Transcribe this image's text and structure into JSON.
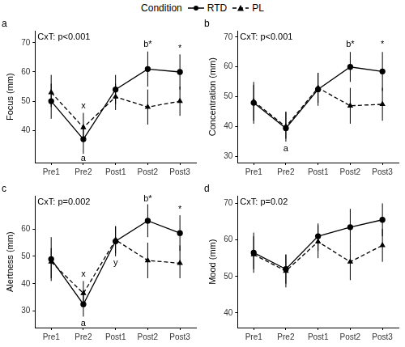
{
  "legend_title": "Condition",
  "chart_data": [
    {
      "type": "line",
      "title": "a",
      "y_label": "Focus (mm)",
      "categories": [
        "Pre1",
        "Pre2",
        "Post1",
        "Post2",
        "Post3"
      ],
      "ylim": [
        29,
        74
      ],
      "yticks": [
        40,
        50,
        60,
        70
      ],
      "grid": false,
      "series": [
        {
          "name": "RTD",
          "color": "#000000",
          "marker": "circle",
          "line_style": "solid",
          "values": [
            50,
            37,
            54,
            61,
            60
          ],
          "error": [
            [
              44,
              56
            ],
            [
              32,
              42
            ],
            [
              49,
              59
            ],
            [
              55,
              67
            ],
            [
              54,
              66
            ]
          ]
        },
        {
          "name": "PL",
          "color": "#000000",
          "marker": "triangle",
          "line_style": "dashed",
          "values": [
            53,
            41,
            51.5,
            48,
            50
          ],
          "error": [
            [
              48,
              59
            ],
            [
              37,
              46
            ],
            [
              47,
              56
            ],
            [
              42,
              54
            ],
            [
              45,
              55
            ]
          ]
        }
      ],
      "annotations": [
        {
          "text": "CxT: p<0.001"
        },
        {
          "text": "x",
          "x": "Pre2",
          "y": 48.5
        },
        {
          "text": "a",
          "x": "Pre2",
          "y": 30.5
        },
        {
          "text": "b*",
          "x": "Post2",
          "y": 69.5
        },
        {
          "text": "*",
          "x": "Post3",
          "y": 68
        }
      ]
    },
    {
      "type": "line",
      "title": "b",
      "y_label": "Concentration (mm)",
      "categories": [
        "Pre1",
        "Pre2",
        "Post1",
        "Post2",
        "Post3"
      ],
      "ylim": [
        28,
        72
      ],
      "yticks": [
        30,
        40,
        50,
        60,
        70
      ],
      "grid": false,
      "series": [
        {
          "name": "RTD",
          "color": "#000000",
          "marker": "circle",
          "line_style": "solid",
          "values": [
            48,
            39.5,
            52.5,
            60,
            58.5
          ],
          "error": [
            [
              41,
              55
            ],
            [
              35,
              45
            ],
            [
              47,
              58
            ],
            [
              55,
              65
            ],
            [
              52,
              65
            ]
          ]
        },
        {
          "name": "PL",
          "color": "#000000",
          "marker": "triangle",
          "line_style": "dashed",
          "values": [
            48.5,
            40,
            53,
            47,
            47.5
          ],
          "error": [
            [
              42,
              54
            ],
            [
              36,
              45
            ],
            [
              48,
              58
            ],
            [
              41,
              53
            ],
            [
              42,
              53
            ]
          ]
        }
      ],
      "annotations": [
        {
          "text": "CxT: p<0.001"
        },
        {
          "text": "a",
          "x": "Pre2",
          "y": 32.5
        },
        {
          "text": "b*",
          "x": "Post2",
          "y": 67.5
        },
        {
          "text": "*",
          "x": "Post3",
          "y": 67.5
        }
      ]
    },
    {
      "type": "line",
      "title": "c",
      "y_label": "Alertness (mm)",
      "categories": [
        "Pre1",
        "Pre2",
        "Post1",
        "Post2",
        "Post3"
      ],
      "ylim": [
        24,
        72
      ],
      "yticks": [
        30,
        40,
        50,
        60
      ],
      "grid": false,
      "series": [
        {
          "name": "RTD",
          "color": "#000000",
          "marker": "circle",
          "line_style": "solid",
          "values": [
            49,
            32.5,
            55.5,
            63,
            58.5
          ],
          "error": [
            [
              41,
              57
            ],
            [
              28,
              37
            ],
            [
              50,
              61
            ],
            [
              57,
              69
            ],
            [
              52,
              65
            ]
          ]
        },
        {
          "name": "PL",
          "color": "#000000",
          "marker": "triangle",
          "line_style": "dashed",
          "values": [
            48,
            36.5,
            56,
            48.5,
            47.5
          ],
          "error": [
            [
              42,
              53
            ],
            [
              32,
              41
            ],
            [
              51,
              61
            ],
            [
              42,
              55
            ],
            [
              42,
              54
            ]
          ]
        }
      ],
      "annotations": [
        {
          "text": "CxT: p=0.002"
        },
        {
          "text": "x",
          "x": "Pre2",
          "y": 43.5
        },
        {
          "text": "a",
          "x": "Pre2",
          "y": 25.5
        },
        {
          "text": "y",
          "x": "Post1",
          "y": 47.5
        },
        {
          "text": "b*",
          "x": "Post2",
          "y": 71
        },
        {
          "text": "*",
          "x": "Post3",
          "y": 67
        }
      ]
    },
    {
      "type": "line",
      "title": "d",
      "y_label": "Mood (mm)",
      "categories": [
        "Pre1",
        "Pre2",
        "Post1",
        "Post2",
        "Post3"
      ],
      "ylim": [
        36,
        72
      ],
      "yticks": [
        40,
        50,
        60,
        70
      ],
      "grid": false,
      "series": [
        {
          "name": "RTD",
          "color": "#000000",
          "marker": "circle",
          "line_style": "solid",
          "values": [
            56.5,
            52,
            61,
            63.5,
            65.5
          ],
          "error": [
            [
              51,
              62
            ],
            [
              48,
              56
            ],
            [
              57,
              64.5
            ],
            [
              59,
              68.5
            ],
            [
              61,
              70
            ]
          ]
        },
        {
          "name": "PL",
          "color": "#000000",
          "marker": "triangle",
          "line_style": "dashed",
          "values": [
            56,
            51.5,
            59.5,
            54,
            58.5
          ],
          "error": [
            [
              52,
              61
            ],
            [
              47,
              56
            ],
            [
              55,
              64
            ],
            [
              49,
              59
            ],
            [
              54,
              63
            ]
          ]
        }
      ],
      "annotations": [
        {
          "text": "CxT: p=0.02"
        }
      ]
    }
  ]
}
